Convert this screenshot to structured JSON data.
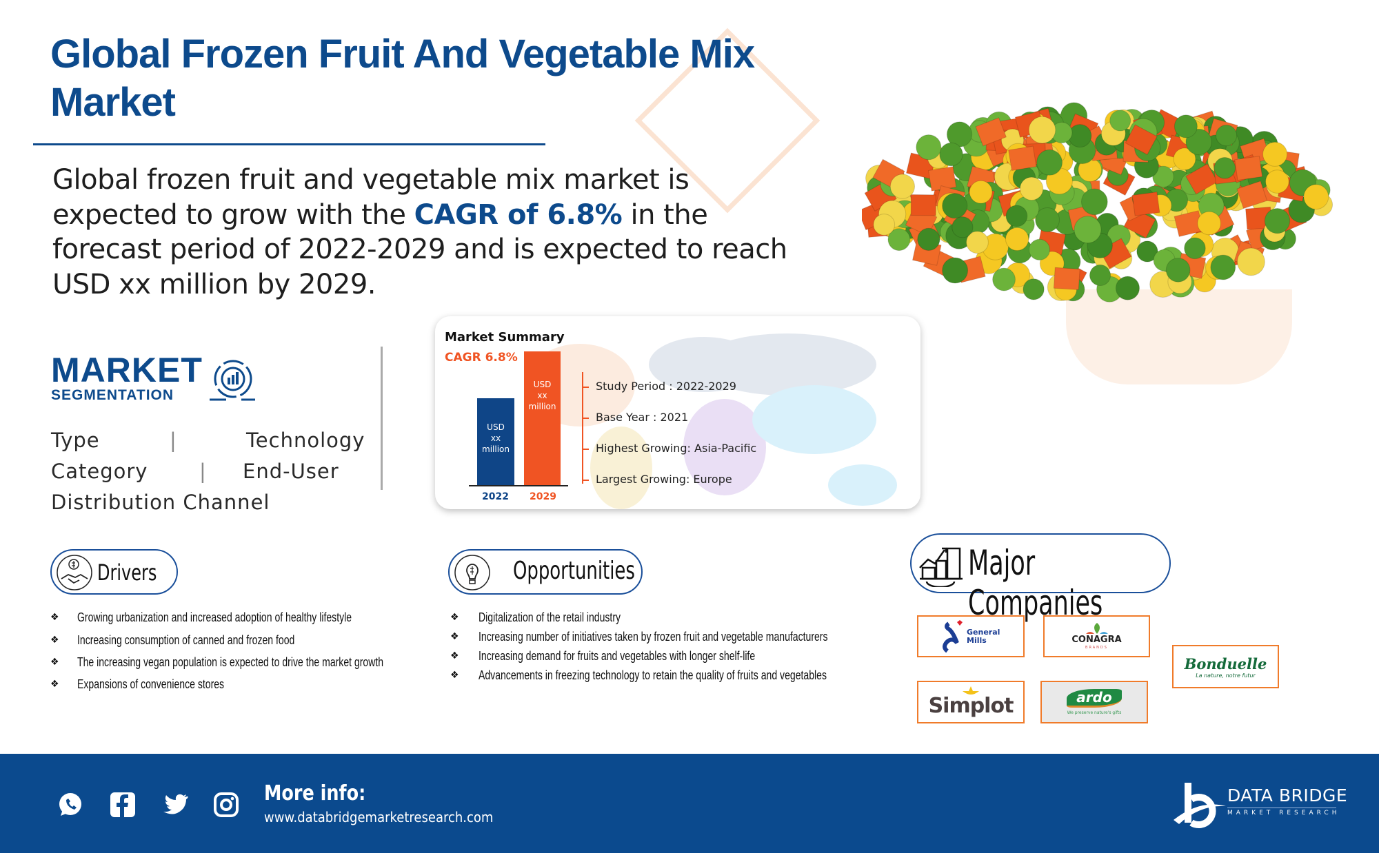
{
  "title": "Global Frozen Fruit And Vegetable Mix Market",
  "intro": {
    "before": "Global frozen fruit and vegetable mix market is expected to grow with the ",
    "highlight": "CAGR of 6.8%",
    "after": " in the forecast period of 2022-2029 and is expected to reach USD xx million by 2029."
  },
  "segmentation": {
    "heading": "MARKET",
    "subheading": "SEGMENTATION",
    "items": [
      "Type",
      "Technology",
      "Category",
      "End-User",
      "Distribution Channel"
    ],
    "separator": "|"
  },
  "summary": {
    "title": "Market Summary",
    "cagr": "CAGR 6.8%",
    "bars": [
      {
        "year": "2022",
        "label_l1": "USD",
        "label_l2": "xx",
        "label_l3": "million"
      },
      {
        "year": "2029",
        "label_l1": "USD",
        "label_l2": "xx",
        "label_l3": "million"
      }
    ],
    "facts": [
      "Study Period : 2022-2029",
      "Base Year : 2021",
      "Highest Growing: Asia-Pacific",
      "Largest Growing: Europe"
    ]
  },
  "drivers": {
    "title": "Drivers",
    "items": [
      "Growing urbanization and increased adoption of healthy lifestyle",
      "Increasing consumption of canned and frozen food",
      "The increasing vegan population is expected to drive the market growth",
      "Expansions of convenience stores"
    ]
  },
  "opportunities": {
    "title": "Opportunities",
    "items": [
      "Digitalization of the retail industry",
      "Increasing number of initiatives taken by frozen fruit and vegetable manufacturers",
      "Increasing demand for fruits and vegetables with longer shelf-life",
      "Advancements in freezing technology to retain the quality of fruits and vegetables"
    ]
  },
  "companies": {
    "title": "Major Companies",
    "logos": {
      "general_mills": "General Mills",
      "conagra": "CONAGRA",
      "conagra_sub": "BRANDS",
      "bonduelle": "Bonduelle",
      "bonduelle_tag": "La nature, notre futur",
      "simplot": "Simplot",
      "ardo": "ardo",
      "ardo_tag": "We preserve nature's gifts"
    }
  },
  "footer": {
    "more_info": "More info:",
    "url": "www.databridgemarketresearch.com",
    "brand": "DATA BRIDGE",
    "brand_sub": "MARKET RESEARCH"
  },
  "colors": {
    "brand_blue": "#0d4a8c",
    "accent_orange": "#f05423",
    "footer_blue": "#0b4a8e"
  }
}
